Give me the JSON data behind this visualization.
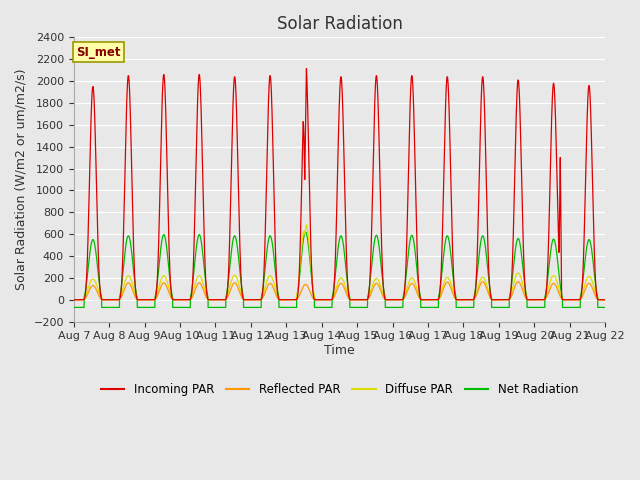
{
  "title": "Solar Radiation",
  "ylabel": "Solar Radiation (W/m2 or um/m2/s)",
  "xlabel": "Time",
  "ylim": [
    -200,
    2400
  ],
  "num_days": 15,
  "points_per_day": 288,
  "annotation_label": "SI_met",
  "plot_bg_color": "#e8e8e8",
  "fig_bg_color": "#e8e8e8",
  "colors": {
    "incoming": "#dd0000",
    "reflected": "#ff9900",
    "diffuse": "#dddd00",
    "net": "#00bb00"
  },
  "day_peaks": {
    "incoming": [
      1950,
      2050,
      2060,
      2060,
      2040,
      2050,
      2200,
      2040,
      2050,
      2050,
      2040,
      2040,
      2010,
      1980,
      1960
    ],
    "reflected": [
      130,
      155,
      155,
      155,
      155,
      150,
      140,
      150,
      150,
      150,
      160,
      165,
      165,
      150,
      150
    ],
    "diffuse": [
      190,
      220,
      220,
      220,
      225,
      220,
      700,
      200,
      195,
      200,
      205,
      205,
      245,
      220,
      215
    ],
    "net": [
      550,
      585,
      595,
      595,
      585,
      585,
      620,
      585,
      590,
      590,
      585,
      585,
      560,
      555,
      550
    ]
  },
  "night_base": {
    "incoming": 0,
    "reflected": 0,
    "diffuse": 0,
    "net": -70
  },
  "tick_labels": [
    "Aug 7",
    "Aug 8",
    "Aug 9",
    "Aug 10",
    "Aug 11",
    "Aug 12",
    "Aug 13",
    "Aug 14",
    "Aug 15",
    "Aug 16",
    "Aug 17",
    "Aug 18",
    "Aug 19",
    "Aug 20",
    "Aug 21",
    "Aug 22"
  ],
  "title_fontsize": 12,
  "label_fontsize": 9,
  "tick_fontsize": 8
}
